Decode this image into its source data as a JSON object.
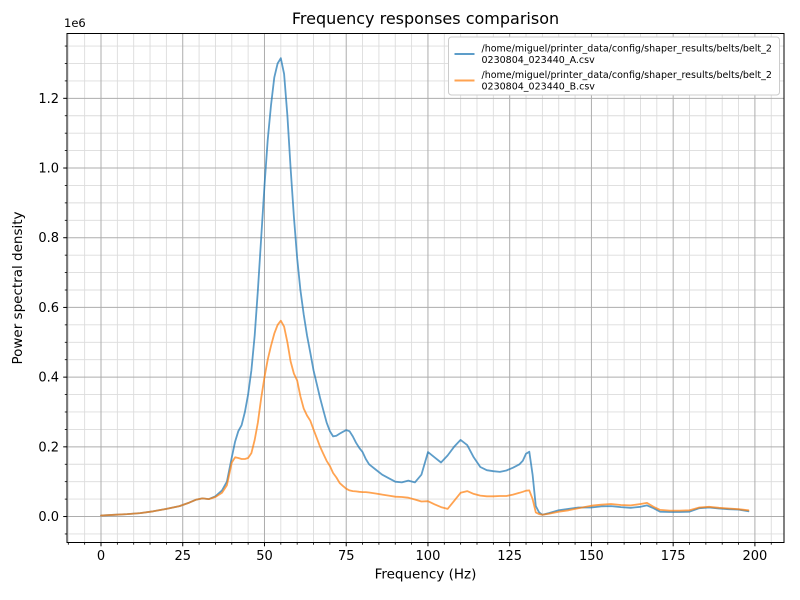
{
  "figure": {
    "background": "#ffffff",
    "title": "Frequency responses comparison",
    "offset_text": "1e6"
  },
  "chart_data": {
    "type": "line",
    "title": "Frequency responses comparison",
    "xlabel": "Frequency (Hz)",
    "ylabel": "Power spectral density",
    "y_offset_label": "1e6",
    "y_unit_multiplier": 1000000,
    "xlim": [
      -10.4,
      208.9
    ],
    "ylim": [
      -0.0745,
      1.386
    ],
    "x_major_ticks": [
      0,
      25,
      50,
      75,
      100,
      125,
      150,
      175,
      200
    ],
    "x_minor_step": 5,
    "y_major_ticks": [
      0.0,
      0.2,
      0.4,
      0.6,
      0.8,
      1.0,
      1.2
    ],
    "y_major_tick_labels": [
      "0.0",
      "0.2",
      "0.4",
      "0.6",
      "0.8",
      "1.0",
      "1.2"
    ],
    "y_minor_step": 0.05,
    "grid": {
      "major_color": "#adadad",
      "minor_color": "#dcdcdc",
      "major_on": true,
      "minor_on": true
    },
    "spine_color": "#000000",
    "legend": {
      "position": "upper right",
      "background": "#ffffff",
      "border_color": "#cccccc",
      "entries": [
        {
          "label": "/home/miguel/printer_data/config/shaper_results/belts/belt_2\n0230804_023440_A.csv",
          "color": "#1f77b4"
        },
        {
          "label": "/home/miguel/printer_data/config/shaper_results/belts/belt_2\n0230804_023440_B.csv",
          "color": "#ff7f0e"
        }
      ]
    },
    "line_alpha": 0.72,
    "line_width": 1.8,
    "x": [
      0,
      4,
      8,
      12,
      16,
      20,
      24,
      27,
      29,
      31,
      33,
      35,
      37,
      38.5,
      40,
      41,
      42,
      43,
      44,
      45,
      46,
      47,
      48,
      49,
      50,
      51,
      52,
      53,
      54,
      55,
      56,
      57,
      58,
      59,
      60,
      61,
      62,
      63,
      64,
      65,
      66,
      67,
      68,
      69,
      70,
      71,
      72,
      73,
      74,
      75,
      76,
      77,
      78,
      79,
      80,
      81,
      82,
      84,
      86,
      88,
      90,
      92,
      94,
      96,
      98,
      100,
      102,
      104,
      106,
      108,
      110,
      112,
      114,
      116,
      118,
      120,
      122,
      124,
      126,
      128,
      129,
      130,
      131,
      132,
      133,
      134,
      135,
      137,
      140,
      143,
      146,
      150,
      153,
      156,
      159,
      162,
      165,
      167,
      169,
      171,
      174,
      177,
      180,
      183,
      186,
      189,
      192,
      195,
      198
    ],
    "series": [
      {
        "name": "/home/miguel/printer_data/config/shaper_results/belts/belt_20230804_023440_A.csv",
        "color": "#1f77b4",
        "values": [
          0.003,
          0.005,
          0.007,
          0.01,
          0.015,
          0.022,
          0.03,
          0.04,
          0.048,
          0.052,
          0.05,
          0.058,
          0.075,
          0.1,
          0.17,
          0.215,
          0.245,
          0.262,
          0.3,
          0.35,
          0.42,
          0.52,
          0.65,
          0.8,
          0.95,
          1.08,
          1.18,
          1.26,
          1.3,
          1.315,
          1.27,
          1.15,
          1.0,
          0.86,
          0.74,
          0.65,
          0.58,
          0.52,
          0.47,
          0.42,
          0.38,
          0.34,
          0.305,
          0.27,
          0.245,
          0.23,
          0.232,
          0.238,
          0.243,
          0.248,
          0.245,
          0.23,
          0.212,
          0.197,
          0.185,
          0.165,
          0.15,
          0.135,
          0.12,
          0.11,
          0.1,
          0.098,
          0.103,
          0.098,
          0.12,
          0.185,
          0.17,
          0.155,
          0.175,
          0.2,
          0.22,
          0.205,
          0.17,
          0.142,
          0.133,
          0.13,
          0.128,
          0.132,
          0.14,
          0.15,
          0.16,
          0.18,
          0.186,
          0.12,
          0.03,
          0.012,
          0.005,
          0.01,
          0.018,
          0.022,
          0.026,
          0.026,
          0.029,
          0.03,
          0.027,
          0.025,
          0.028,
          0.032,
          0.024,
          0.014,
          0.013,
          0.013,
          0.014,
          0.024,
          0.026,
          0.023,
          0.021,
          0.02,
          0.015
        ]
      },
      {
        "name": "/home/miguel/printer_data/config/shaper_results/belts/belt_20230804_023440_B.csv",
        "color": "#ff7f0e",
        "values": [
          0.003,
          0.005,
          0.007,
          0.01,
          0.015,
          0.022,
          0.03,
          0.04,
          0.048,
          0.052,
          0.05,
          0.056,
          0.068,
          0.09,
          0.155,
          0.17,
          0.168,
          0.165,
          0.165,
          0.168,
          0.182,
          0.22,
          0.27,
          0.34,
          0.4,
          0.45,
          0.49,
          0.525,
          0.55,
          0.562,
          0.545,
          0.5,
          0.445,
          0.41,
          0.39,
          0.345,
          0.31,
          0.29,
          0.275,
          0.25,
          0.225,
          0.2,
          0.18,
          0.16,
          0.145,
          0.125,
          0.112,
          0.096,
          0.088,
          0.08,
          0.075,
          0.073,
          0.072,
          0.071,
          0.07,
          0.07,
          0.069,
          0.066,
          0.063,
          0.06,
          0.057,
          0.056,
          0.054,
          0.049,
          0.043,
          0.044,
          0.035,
          0.027,
          0.022,
          0.045,
          0.068,
          0.073,
          0.065,
          0.06,
          0.058,
          0.058,
          0.059,
          0.059,
          0.063,
          0.068,
          0.071,
          0.074,
          0.075,
          0.05,
          0.012,
          0.007,
          0.005,
          0.008,
          0.014,
          0.018,
          0.024,
          0.031,
          0.034,
          0.036,
          0.033,
          0.032,
          0.036,
          0.039,
          0.028,
          0.019,
          0.017,
          0.017,
          0.018,
          0.026,
          0.028,
          0.025,
          0.023,
          0.021,
          0.018
        ]
      }
    ]
  }
}
